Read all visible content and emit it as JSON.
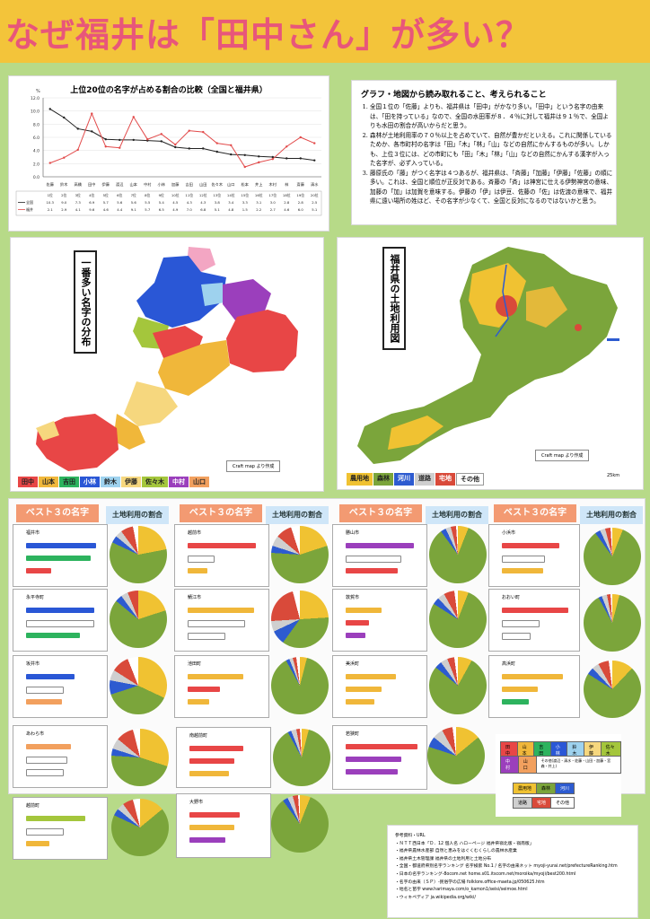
{
  "title": "なぜ福井は「田中さん」が多い？",
  "line_chart": {
    "title": "上位20位の名字が占める割合の比較（全国と福井県）",
    "ylabel": "%",
    "yticks": [
      "12.0",
      "10.0",
      "8.0",
      "6.0",
      "4.0",
      "2.0",
      "0.0"
    ],
    "categories": [
      "佐藤",
      "鈴木",
      "高橋",
      "田中",
      "伊藤",
      "渡辺",
      "山本",
      "中村",
      "小林",
      "加藤",
      "吉田",
      "山田",
      "佐々木",
      "山口",
      "松本",
      "井上",
      "木村",
      "林",
      "斎藤",
      "清水"
    ],
    "ranks": [
      "1位",
      "2位",
      "3位",
      "4位",
      "5位",
      "6位",
      "7位",
      "8位",
      "9位",
      "10位",
      "11位",
      "12位",
      "13位",
      "14位",
      "15位",
      "16位",
      "17位",
      "18位",
      "19位",
      "20位"
    ],
    "series": [
      {
        "name": "全国",
        "color": "#222222",
        "values": [
          10.3,
          9.0,
          7.3,
          6.9,
          5.7,
          5.6,
          5.6,
          5.5,
          5.4,
          4.5,
          4.3,
          4.3,
          3.8,
          3.4,
          3.3,
          3.1,
          3.0,
          2.8,
          2.8,
          2.5
        ]
      },
      {
        "name": "福井",
        "color": "#e24a4a",
        "values": [
          2.1,
          2.9,
          4.1,
          9.6,
          4.6,
          4.4,
          9.1,
          5.7,
          6.5,
          4.9,
          7.0,
          6.8,
          5.1,
          4.8,
          1.5,
          2.2,
          2.7,
          4.6,
          6.0,
          5.1
        ]
      }
    ],
    "ylim": [
      0,
      12
    ]
  },
  "notes": {
    "heading": "グラフ・地図から読み取れること、考えられること",
    "items": [
      "全国１位の「佐藤」よりも、福井県は「田中」がかなり多い。「田中」という名字の由来は、「田を持っている」なので、全国の水田率が８．４％に対して福井は９１％で、全国よりも水田の割合が高いからだと思う。",
      "森林が土地利用率の７０％以上を占めていて、自然が豊かだといえる。これに関係しているためか、各市町村の名字は「田」「木」「林」「山」などの自然にかんするものが多い。しかも、上位３位には、どの市町にも「田」「木」「林」「山」などの自然にかんする漢字が入った名字が、必ず入っている。",
      "藤原氏の「藤」がつく名字は４つあるが、福井県は、「斉藤」「加藤」「伊藤」「佐藤」の順に多い。これは、全国と順位が正反対である。斉藤の「斉」は神宮に仕える伊勢神宮の意味、加藤の「加」は加賀を意味する。伊藤の「伊」は伊豆、佐藤の「佐」は佐渡の意味で、福井県に遠い場所の姓ほど、その名字が少なくて、全国と反対になるのではないかと思う。"
    ]
  },
  "map_names": {
    "label": "一番多い名字の分布",
    "credit": "Craft map より作成",
    "legend": [
      {
        "name": "田中",
        "color": "#e84646"
      },
      {
        "name": "山本",
        "color": "#f0b73a"
      },
      {
        "name": "吉田",
        "color": "#2db35e"
      },
      {
        "name": "小林",
        "color": "#2a57d6"
      },
      {
        "name": "鈴木",
        "color": "#9ed2ee"
      },
      {
        "name": "伊藤",
        "color": "#f6d77e"
      },
      {
        "name": "佐々木",
        "color": "#a4c63c"
      },
      {
        "name": "中村",
        "color": "#9b3fbc"
      },
      {
        "name": "山口",
        "color": "#f2a05e"
      }
    ]
  },
  "map_land": {
    "label": "福井県の土地利用図",
    "credit": "Craft map より作成",
    "scale": "25km",
    "legend": [
      {
        "name": "農用地",
        "color": "#f0c232"
      },
      {
        "name": "森林",
        "color": "#7ba53b"
      },
      {
        "name": "河川",
        "color": "#2d5bd0"
      },
      {
        "name": "道路",
        "color": "#cfcfcf"
      },
      {
        "name": "宅地",
        "color": "#d94a3a"
      },
      {
        "name": "その他",
        "color": "#ffffff"
      }
    ]
  },
  "section_headers": {
    "best3": "ベスト３の名字",
    "land_ratio": "土地利用の割合"
  },
  "cards": [
    {
      "name": "福井市"
    },
    {
      "name": "永平寺町"
    },
    {
      "name": "坂井市"
    },
    {
      "name": "あわら市"
    },
    {
      "name": "越前町"
    },
    {
      "name": "越前市"
    },
    {
      "name": "鯖江市"
    },
    {
      "name": "池田町"
    },
    {
      "name": "南越前町"
    },
    {
      "name": "大野市"
    },
    {
      "name": "勝山市"
    },
    {
      "name": "敦賀市"
    },
    {
      "name": "美浜町"
    },
    {
      "name": "若狭町"
    },
    {
      "name": "小浜市"
    },
    {
      "name": "おおい町"
    },
    {
      "name": "高浜町"
    }
  ],
  "bar_key": {
    "row1": [
      "田中",
      "山本",
      "吉田",
      "小林",
      "鈴木",
      "伊藤",
      "佐々木"
    ],
    "row2": [
      "中村",
      "山口",
      "その他(渡辺・清水・佐藤・山田・加藤・宮森・井上)"
    ],
    "pie_row1": [
      "農用地",
      "森林",
      "河川"
    ],
    "pie_row2": [
      "道路",
      "宅地",
      "その他"
    ]
  },
  "references": {
    "heading": "参考資料・URL",
    "lines": [
      "・ＮＴＴ西日本「Ｄ．12 個人名 ハローページ 福井県嶺北版・嶺南版」",
      "・福井県農林水産部 自然と恵みをはぐくむくらしの農林水産業",
      "・福井県土木管理課 福井県の土地利用と土地分布",
      "・全国・都道府県別名字ランキング 名字検索 No.1 / 名字の由来ネット myoji-yurai.net/prefectureRanking.htm",
      "・日本の名字ランキング-8ocom.net home.s01.itscom.net/moroika/myoji/best200.html",
      "・名字の由来（ＳＰ）-民俗学の広場 folklore.office-maeta.jp/050625.htm",
      "・地名と苗字 www.harimaya.com/o_kamon1/seisi/seimoe.html",
      "・ウィキペディア ja.wikipedia.org/wiki/"
    ]
  }
}
